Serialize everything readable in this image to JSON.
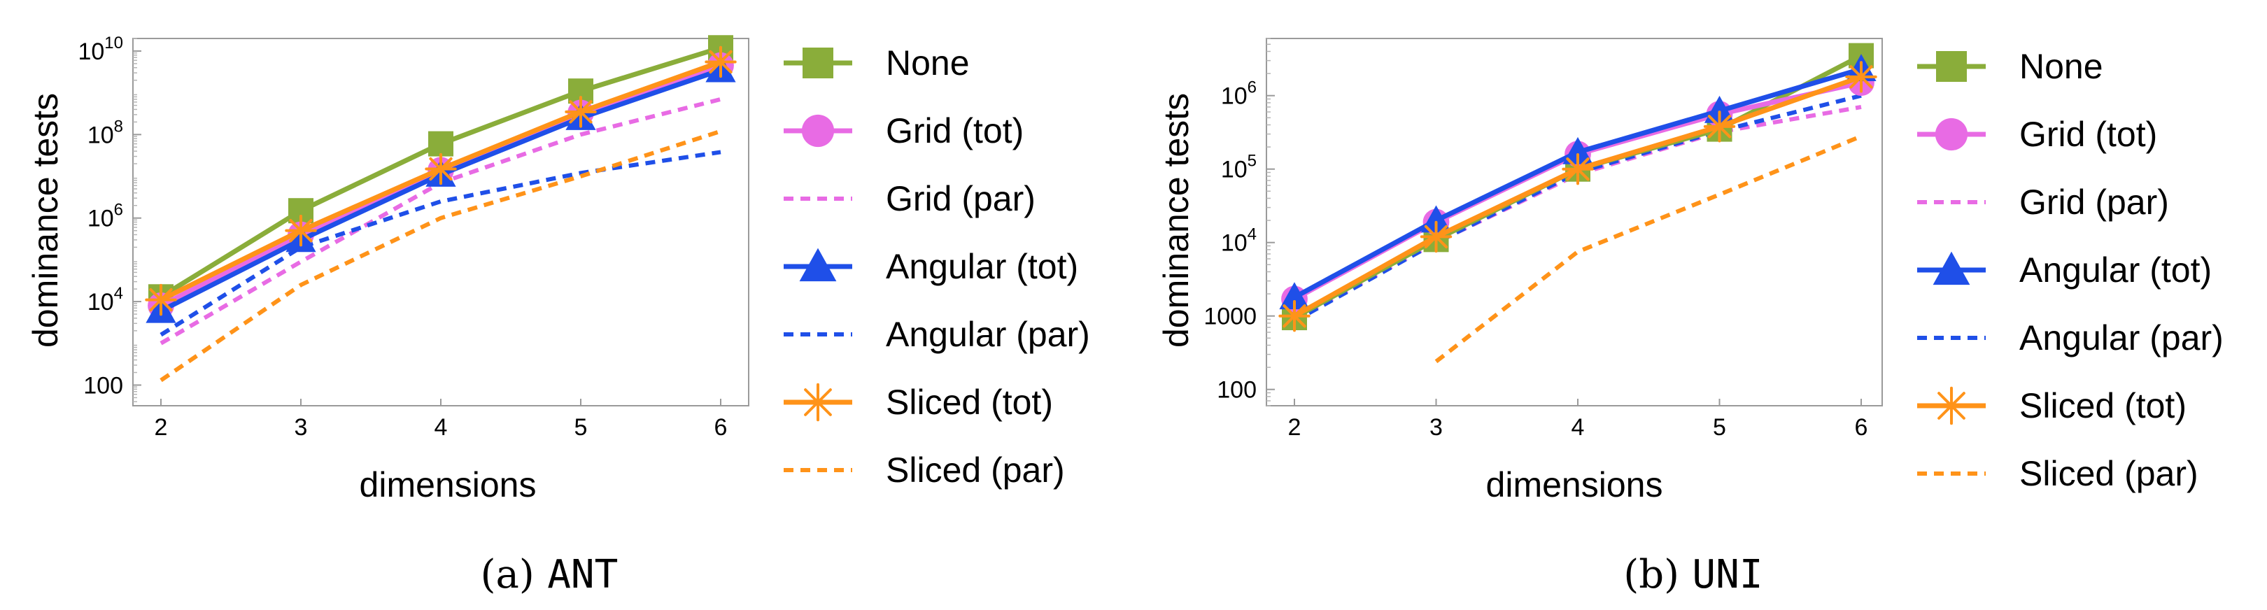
{
  "styles": {
    "None": {
      "color": "#8aad3a",
      "dash": "solid",
      "marker": "square"
    },
    "Grid (tot)": {
      "color": "#e86be4",
      "dash": "solid",
      "marker": "circle"
    },
    "Grid (par)": {
      "color": "#e86be4",
      "dash": "dashed",
      "marker": "none"
    },
    "Angular (tot)": {
      "color": "#1f4fe8",
      "dash": "solid",
      "marker": "triangle"
    },
    "Angular (par)": {
      "color": "#1f4fe8",
      "dash": "dashed",
      "marker": "none"
    },
    "Sliced (tot)": {
      "color": "#ff9319",
      "dash": "solid",
      "marker": "star"
    },
    "Sliced (par)": {
      "color": "#ff9319",
      "dash": "dashed",
      "marker": "none"
    }
  },
  "chart_data": [
    {
      "type": "line",
      "caption": {
        "letter": "(a)",
        "name": "ANT"
      },
      "xlabel": "dimensions",
      "ylabel": "dominance tests",
      "yscale": "log",
      "x": [
        2,
        3,
        4,
        5,
        6
      ],
      "xlim": [
        2,
        6
      ],
      "ylim": [
        32,
        20000000000
      ],
      "yticks": [
        {
          "value": 100,
          "label": "100"
        },
        {
          "value": 10000,
          "base": "10",
          "exp": "4"
        },
        {
          "value": 1000000,
          "base": "10",
          "exp": "6"
        },
        {
          "value": 100000000,
          "base": "10",
          "exp": "8"
        },
        {
          "value": 10000000000,
          "base": "10",
          "exp": "10"
        }
      ],
      "series": [
        {
          "name": "None",
          "values": [
            13000,
            1500000,
            60000000,
            1100000000,
            12000000000
          ]
        },
        {
          "name": "Grid (tot)",
          "values": [
            8000,
            400000,
            14000000,
            330000000,
            4500000000
          ]
        },
        {
          "name": "Grid (par)",
          "values": [
            1000,
            90000,
            7000000,
            100000000,
            700000000
          ]
        },
        {
          "name": "Angular (tot)",
          "values": [
            6000,
            300000,
            11000000,
            250000000,
            3500000000
          ]
        },
        {
          "name": "Angular (par)",
          "values": [
            1600,
            200000,
            2500000,
            12000000,
            38000000
          ]
        },
        {
          "name": "Sliced (tot)",
          "values": [
            11000,
            500000,
            15000000,
            350000000,
            5500000000
          ]
        },
        {
          "name": "Sliced (par)",
          "values": [
            130,
            25000,
            1000000,
            10000000,
            120000000
          ]
        }
      ]
    },
    {
      "type": "line",
      "caption": {
        "letter": "(b)",
        "name": "UNI"
      },
      "xlabel": "dimensions",
      "ylabel": "dominance tests",
      "yscale": "log",
      "x": [
        2,
        3,
        4,
        5,
        6
      ],
      "xlim": [
        2,
        6
      ],
      "ylim": [
        60,
        6000000
      ],
      "yticks": [
        {
          "value": 100,
          "label": "100"
        },
        {
          "value": 1000,
          "label": "1000"
        },
        {
          "value": 10000,
          "base": "10",
          "exp": "4"
        },
        {
          "value": 100000,
          "base": "10",
          "exp": "5"
        },
        {
          "value": 1000000,
          "base": "10",
          "exp": "6"
        }
      ],
      "series": [
        {
          "name": "None",
          "values": [
            950,
            11000,
            100000,
            350000,
            3500000
          ]
        },
        {
          "name": "Grid (tot)",
          "values": [
            1700,
            19000,
            160000,
            560000,
            1500000
          ]
        },
        {
          "name": "Grid (par)",
          "values": [
            900,
            10000,
            85000,
            320000,
            700000
          ]
        },
        {
          "name": "Angular (tot)",
          "values": [
            1800,
            20000,
            170000,
            620000,
            2300000
          ]
        },
        {
          "name": "Angular (par)",
          "values": [
            850,
            10000,
            90000,
            330000,
            1000000
          ]
        },
        {
          "name": "Sliced (tot)",
          "values": [
            1000,
            12000,
            100000,
            380000,
            1800000
          ]
        },
        {
          "name": "Sliced (par)",
          "values": [
            null,
            240,
            7500,
            45000,
            280000
          ]
        }
      ]
    }
  ]
}
